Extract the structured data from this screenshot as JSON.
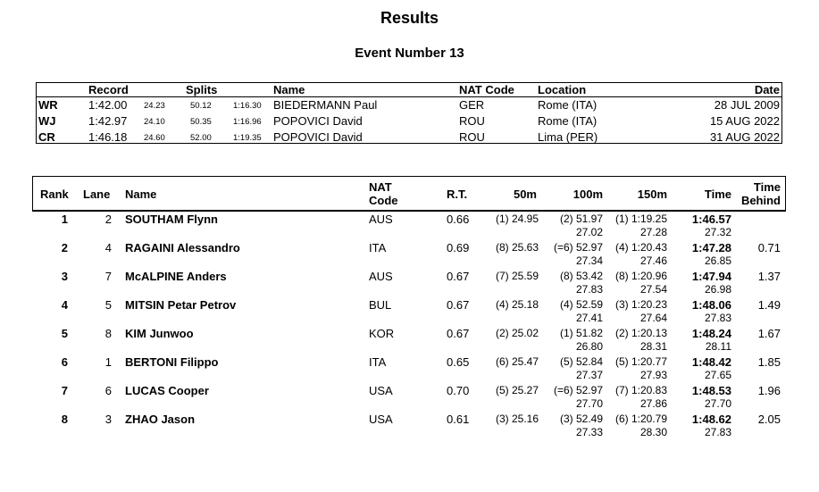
{
  "title": "Results",
  "subtitle": "Event Number 13",
  "records": {
    "headers": {
      "record": "Record",
      "splits": "Splits",
      "name": "Name",
      "nat": "NAT Code",
      "location": "Location",
      "date": "Date"
    },
    "rows": [
      {
        "type": "WR",
        "time": "1:42.00",
        "s1": "24.23",
        "s2": "50.12",
        "s3": "1:16.30",
        "name": "BIEDERMANN Paul",
        "nat": "GER",
        "location": "Rome (ITA)",
        "date": "28 JUL 2009"
      },
      {
        "type": "WJ",
        "time": "1:42.97",
        "s1": "24.10",
        "s2": "50.35",
        "s3": "1:16.96",
        "name": "POPOVICI David",
        "nat": "ROU",
        "location": "Rome (ITA)",
        "date": "15 AUG 2022"
      },
      {
        "type": "CR",
        "time": "1:46.18",
        "s1": "24.60",
        "s2": "52.00",
        "s3": "1:19.35",
        "name": "POPOVICI David",
        "nat": "ROU",
        "location": "Lima (PER)",
        "date": "31 AUG 2022"
      }
    ]
  },
  "results": {
    "headers": {
      "rank": "Rank",
      "lane": "Lane",
      "name": "Name",
      "nat1": "NAT",
      "nat2": "Code",
      "rt": "R.T.",
      "m50": "50m",
      "m100": "100m",
      "m150": "150m",
      "time": "Time",
      "behind1": "Time",
      "behind2": "Behind"
    },
    "rows": [
      {
        "rank": "1",
        "lane": "2",
        "name": "SOUTHAM Flynn",
        "nat": "AUS",
        "rt": "0.66",
        "s50": "(1) 24.95",
        "s100": "(2) 51.97",
        "s150": "(1) 1:19.25",
        "time": "1:46.57",
        "d100": "27.02",
        "d150": "27.28",
        "d200": "27.32",
        "behind": ""
      },
      {
        "rank": "2",
        "lane": "4",
        "name": "RAGAINI Alessandro",
        "nat": "ITA",
        "rt": "0.69",
        "s50": "(8) 25.63",
        "s100": "(=6) 52.97",
        "s150": "(4) 1:20.43",
        "time": "1:47.28",
        "d100": "27.34",
        "d150": "27.46",
        "d200": "26.85",
        "behind": "0.71"
      },
      {
        "rank": "3",
        "lane": "7",
        "name": "McALPINE Anders",
        "nat": "AUS",
        "rt": "0.67",
        "s50": "(7) 25.59",
        "s100": "(8) 53.42",
        "s150": "(8) 1:20.96",
        "time": "1:47.94",
        "d100": "27.83",
        "d150": "27.54",
        "d200": "26.98",
        "behind": "1.37"
      },
      {
        "rank": "4",
        "lane": "5",
        "name": "MITSIN Petar Petrov",
        "nat": "BUL",
        "rt": "0.67",
        "s50": "(4) 25.18",
        "s100": "(4) 52.59",
        "s150": "(3) 1:20.23",
        "time": "1:48.06",
        "d100": "27.41",
        "d150": "27.64",
        "d200": "27.83",
        "behind": "1.49"
      },
      {
        "rank": "5",
        "lane": "8",
        "name": "KIM Junwoo",
        "nat": "KOR",
        "rt": "0.67",
        "s50": "(2) 25.02",
        "s100": "(1) 51.82",
        "s150": "(2) 1:20.13",
        "time": "1:48.24",
        "d100": "26.80",
        "d150": "28.31",
        "d200": "28.11",
        "behind": "1.67"
      },
      {
        "rank": "6",
        "lane": "1",
        "name": "BERTONI Filippo",
        "nat": "ITA",
        "rt": "0.65",
        "s50": "(6) 25.47",
        "s100": "(5) 52.84",
        "s150": "(5) 1:20.77",
        "time": "1:48.42",
        "d100": "27.37",
        "d150": "27.93",
        "d200": "27.65",
        "behind": "1.85"
      },
      {
        "rank": "7",
        "lane": "6",
        "name": "LUCAS Cooper",
        "nat": "USA",
        "rt": "0.70",
        "s50": "(5) 25.27",
        "s100": "(=6) 52.97",
        "s150": "(7) 1:20.83",
        "time": "1:48.53",
        "d100": "27.70",
        "d150": "27.86",
        "d200": "27.70",
        "behind": "1.96"
      },
      {
        "rank": "8",
        "lane": "3",
        "name": "ZHAO Jason",
        "nat": "USA",
        "rt": "0.61",
        "s50": "(3) 25.16",
        "s100": "(3) 52.49",
        "s150": "(6) 1:20.79",
        "time": "1:48.62",
        "d100": "27.33",
        "d150": "28.30",
        "d200": "27.83",
        "behind": "2.05"
      }
    ]
  }
}
